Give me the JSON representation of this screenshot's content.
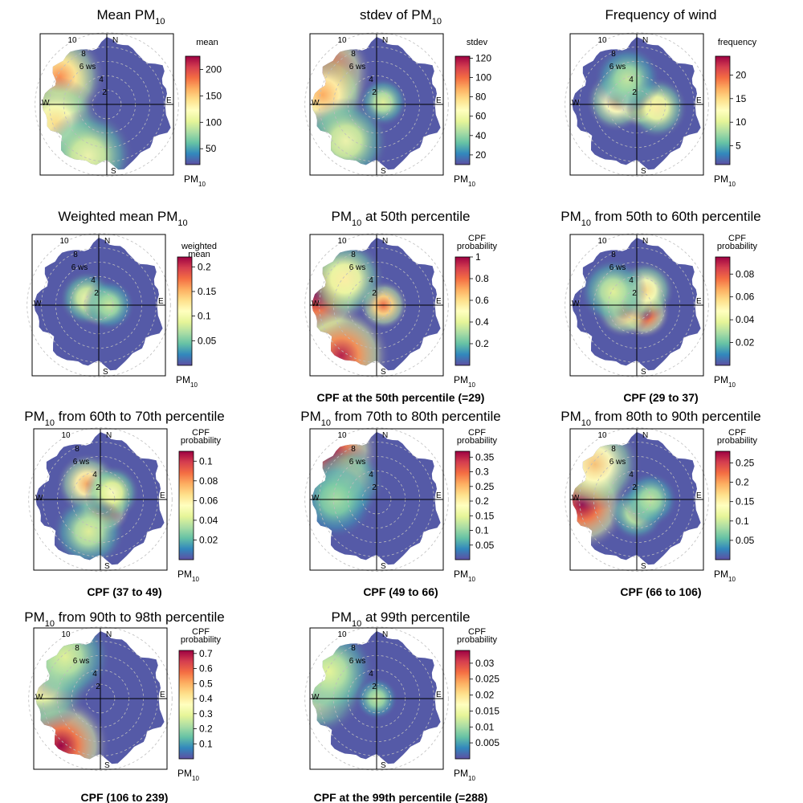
{
  "colors": {
    "scale": [
      "#5E4FA2",
      "#3288BD",
      "#66C2A5",
      "#ABDDA4",
      "#E6F598",
      "#FFFFBF",
      "#FEE08B",
      "#FDAE61",
      "#F46D43",
      "#D53E4F",
      "#9E0142"
    ],
    "axis": "#000000",
    "ring": "#bdbdbd"
  },
  "compass": {
    "n": "N",
    "e": "E",
    "s": "S",
    "w": "W"
  },
  "ring_labels": [
    "2",
    "4",
    "6 ws",
    "8",
    "10"
  ],
  "key_units": {
    "base": "PM",
    "sub": "10"
  },
  "chart_data": [
    {
      "type": "heatmap",
      "title": {
        "pre": "Mean PM",
        "sub": "10",
        "post": ""
      },
      "caption": "",
      "key_title": [
        "mean"
      ],
      "ticks": [
        "50",
        "100",
        "150",
        "200"
      ],
      "tick_values": [
        50,
        100,
        150,
        200
      ],
      "range": [
        20,
        225
      ],
      "ws_range": [
        0,
        10
      ],
      "peak": "far west (high wind speed)",
      "blobs": [
        {
          "dir": 285,
          "ws": 9,
          "level": 1.0
        },
        {
          "dir": 300,
          "ws": 8,
          "level": 0.75
        },
        {
          "dir": 250,
          "ws": 8,
          "level": 0.6
        },
        {
          "dir": 200,
          "ws": 8,
          "level": 0.45
        }
      ]
    },
    {
      "type": "heatmap",
      "title": {
        "pre": "stdev of PM",
        "sub": "10",
        "post": ""
      },
      "caption": "",
      "key_title": [
        "stdev"
      ],
      "ticks": [
        "20",
        "40",
        "60",
        "80",
        "100",
        "120"
      ],
      "tick_values": [
        20,
        40,
        60,
        80,
        100,
        120
      ],
      "range": [
        10,
        122
      ],
      "ws_range": [
        0,
        10
      ],
      "peak": "northwest (high wind speed)",
      "blobs": [
        {
          "dir": 300,
          "ws": 9,
          "level": 1.0
        },
        {
          "dir": 280,
          "ws": 8,
          "level": 0.7
        },
        {
          "dir": 70,
          "ws": 1,
          "level": 0.4
        },
        {
          "dir": 220,
          "ws": 7,
          "level": 0.45
        }
      ]
    },
    {
      "type": "heatmap",
      "title": {
        "pre": "Frequency of wind",
        "sub": "",
        "post": ""
      },
      "caption": "",
      "key_title": [
        "frequency"
      ],
      "ticks": [
        "5",
        "10",
        "15",
        "20"
      ],
      "tick_values": [
        5,
        10,
        15,
        20
      ],
      "range": [
        1,
        24
      ],
      "ws_range": [
        0,
        10
      ],
      "peak": "near centre, low wind speed",
      "blobs": [
        {
          "dir": 90,
          "ws": 0.4,
          "level": 1.0
        },
        {
          "dir": 280,
          "ws": 3,
          "level": 0.65
        },
        {
          "dir": 100,
          "ws": 3,
          "level": 0.55
        },
        {
          "dir": 340,
          "ws": 4,
          "level": 0.35
        }
      ]
    },
    {
      "type": "heatmap",
      "title": {
        "pre": "Weighted mean PM",
        "sub": "10",
        "post": ""
      },
      "caption": "",
      "key_title": [
        "weighted",
        "mean"
      ],
      "ticks": [
        "0.05",
        "0.1",
        "0.15",
        "0.2"
      ],
      "tick_values": [
        0.05,
        0.1,
        0.15,
        0.2
      ],
      "range": [
        0.0,
        0.22
      ],
      "ws_range": [
        0,
        10
      ],
      "peak": "centre",
      "blobs": [
        {
          "dir": 0,
          "ws": 0,
          "level": 1.0
        },
        {
          "dir": 300,
          "ws": 2,
          "level": 0.45
        },
        {
          "dir": 90,
          "ws": 1.5,
          "level": 0.35
        }
      ]
    },
    {
      "type": "heatmap",
      "title": {
        "pre": "PM",
        "sub": "10",
        "post": " at 50th percentile"
      },
      "caption": "CPF at the 50th percentile (=29)",
      "key_title": [
        "CPF",
        "probability"
      ],
      "ticks": [
        "0.2",
        "0.4",
        "0.6",
        "0.8",
        "1"
      ],
      "tick_values": [
        0.2,
        0.4,
        0.6,
        0.8,
        1
      ],
      "range": [
        0.0,
        1.0
      ],
      "ws_range": [
        0,
        10
      ],
      "peak": "west and southwest edge",
      "blobs": [
        {
          "dir": 280,
          "ws": 9,
          "level": 1.0
        },
        {
          "dir": 215,
          "ws": 9,
          "level": 0.95
        },
        {
          "dir": 90,
          "ws": 1,
          "level": 0.8
        },
        {
          "dir": 310,
          "ws": 6,
          "level": 0.55
        }
      ]
    },
    {
      "type": "heatmap",
      "title": {
        "pre": "PM",
        "sub": "10",
        "post": "  from 50th to 60th percentile"
      },
      "caption": "CPF (29 to 37)",
      "key_title": [
        "CPF",
        "probability"
      ],
      "ticks": [
        "0.02",
        "0.04",
        "0.06",
        "0.08"
      ],
      "tick_values": [
        0.02,
        0.04,
        0.06,
        0.08
      ],
      "range": [
        0.0,
        0.095
      ],
      "ws_range": [
        0,
        10
      ],
      "peak": "southeast of centre",
      "blobs": [
        {
          "dir": 135,
          "ws": 1.5,
          "level": 1.0
        },
        {
          "dir": 250,
          "ws": 2,
          "level": 0.75
        },
        {
          "dir": 30,
          "ws": 2.5,
          "level": 0.6
        },
        {
          "dir": 300,
          "ws": 4,
          "level": 0.4
        }
      ]
    },
    {
      "type": "heatmap",
      "title": {
        "pre": "PM",
        "sub": "10",
        "post": " from 60th to 70th percentile"
      },
      "caption": "CPF (37 to 49)",
      "key_title": [
        "CPF",
        "probability"
      ],
      "ticks": [
        "0.02",
        "0.04",
        "0.06",
        "0.08",
        "0.1"
      ],
      "tick_values": [
        0.02,
        0.04,
        0.06,
        0.08,
        0.1
      ],
      "range": [
        0.0,
        0.11
      ],
      "ws_range": [
        0,
        10
      ],
      "peak": "just south of centre",
      "blobs": [
        {
          "dir": 160,
          "ws": 1.5,
          "level": 1.0
        },
        {
          "dir": 320,
          "ws": 3,
          "level": 0.7
        },
        {
          "dir": 60,
          "ws": 2,
          "level": 0.5
        },
        {
          "dir": 200,
          "ws": 5,
          "level": 0.4
        }
      ]
    },
    {
      "type": "heatmap",
      "title": {
        "pre": "PM",
        "sub": "10",
        "post": " from 70th to 80th percentile"
      },
      "caption": "CPF (49 to 66)",
      "key_title": [
        "CPF",
        "probability"
      ],
      "ticks": [
        "0.05",
        "0.1",
        "0.15",
        "0.2",
        "0.25",
        "0.3",
        "0.35"
      ],
      "tick_values": [
        0.05,
        0.1,
        0.15,
        0.2,
        0.25,
        0.3,
        0.35
      ],
      "range": [
        0.0,
        0.37
      ],
      "ws_range": [
        0,
        10
      ],
      "peak": "far northwest edge",
      "blobs": [
        {
          "dir": 315,
          "ws": 10,
          "level": 1.0
        },
        {
          "dir": 300,
          "ws": 5,
          "level": 0.4
        },
        {
          "dir": 270,
          "ws": 6,
          "level": 0.3
        }
      ]
    },
    {
      "type": "heatmap",
      "title": {
        "pre": "PM",
        "sub": "10",
        "post": " from 80th to 90th percentile"
      },
      "caption": "CPF (66 to 106)",
      "key_title": [
        "CPF",
        "probability"
      ],
      "ticks": [
        "0.05",
        "0.1",
        "0.15",
        "0.2",
        "0.25"
      ],
      "tick_values": [
        0.05,
        0.1,
        0.15,
        0.2,
        0.25
      ],
      "range": [
        0.0,
        0.28
      ],
      "ws_range": [
        0,
        10
      ],
      "peak": "west, high wind speed",
      "blobs": [
        {
          "dir": 265,
          "ws": 8,
          "level": 1.0
        },
        {
          "dir": 310,
          "ws": 8,
          "level": 0.65
        },
        {
          "dir": 180,
          "ws": 2,
          "level": 0.4
        },
        {
          "dir": 90,
          "ws": 2,
          "level": 0.35
        }
      ]
    },
    {
      "type": "heatmap",
      "title": {
        "pre": "PM",
        "sub": "10",
        "post": " from 90th to 98th percentile"
      },
      "caption": "CPF (106 to 239)",
      "key_title": [
        "CPF",
        "probability"
      ],
      "ticks": [
        "0.1",
        "0.2",
        "0.3",
        "0.4",
        "0.5",
        "0.6",
        "0.7"
      ],
      "tick_values": [
        0.1,
        0.2,
        0.3,
        0.4,
        0.5,
        0.6,
        0.7
      ],
      "range": [
        0.0,
        0.72
      ],
      "ws_range": [
        0,
        10
      ],
      "peak": "southwest edge",
      "blobs": [
        {
          "dir": 220,
          "ws": 9,
          "level": 1.0
        },
        {
          "dir": 285,
          "ws": 9,
          "level": 0.55
        },
        {
          "dir": 320,
          "ws": 8,
          "level": 0.4
        }
      ]
    },
    {
      "type": "heatmap",
      "title": {
        "pre": "PM",
        "sub": "10",
        "post": " at 99th percentile"
      },
      "caption": "CPF at the 99th percentile (=288)",
      "key_title": [
        "CPF",
        "probability"
      ],
      "ticks": [
        "0.005",
        "0.01",
        "0.015",
        "0.02",
        "0.025",
        "0.03"
      ],
      "tick_values": [
        0.005,
        0.01,
        0.015,
        0.02,
        0.025,
        0.03
      ],
      "range": [
        0.0,
        0.034
      ],
      "ws_range": [
        0,
        10
      ],
      "peak": "west edge",
      "blobs": [
        {
          "dir": 280,
          "ws": 9,
          "level": 0.55
        },
        {
          "dir": 300,
          "ws": 8,
          "level": 0.4
        },
        {
          "dir": 0,
          "ws": 0,
          "level": 0.35
        }
      ]
    }
  ]
}
